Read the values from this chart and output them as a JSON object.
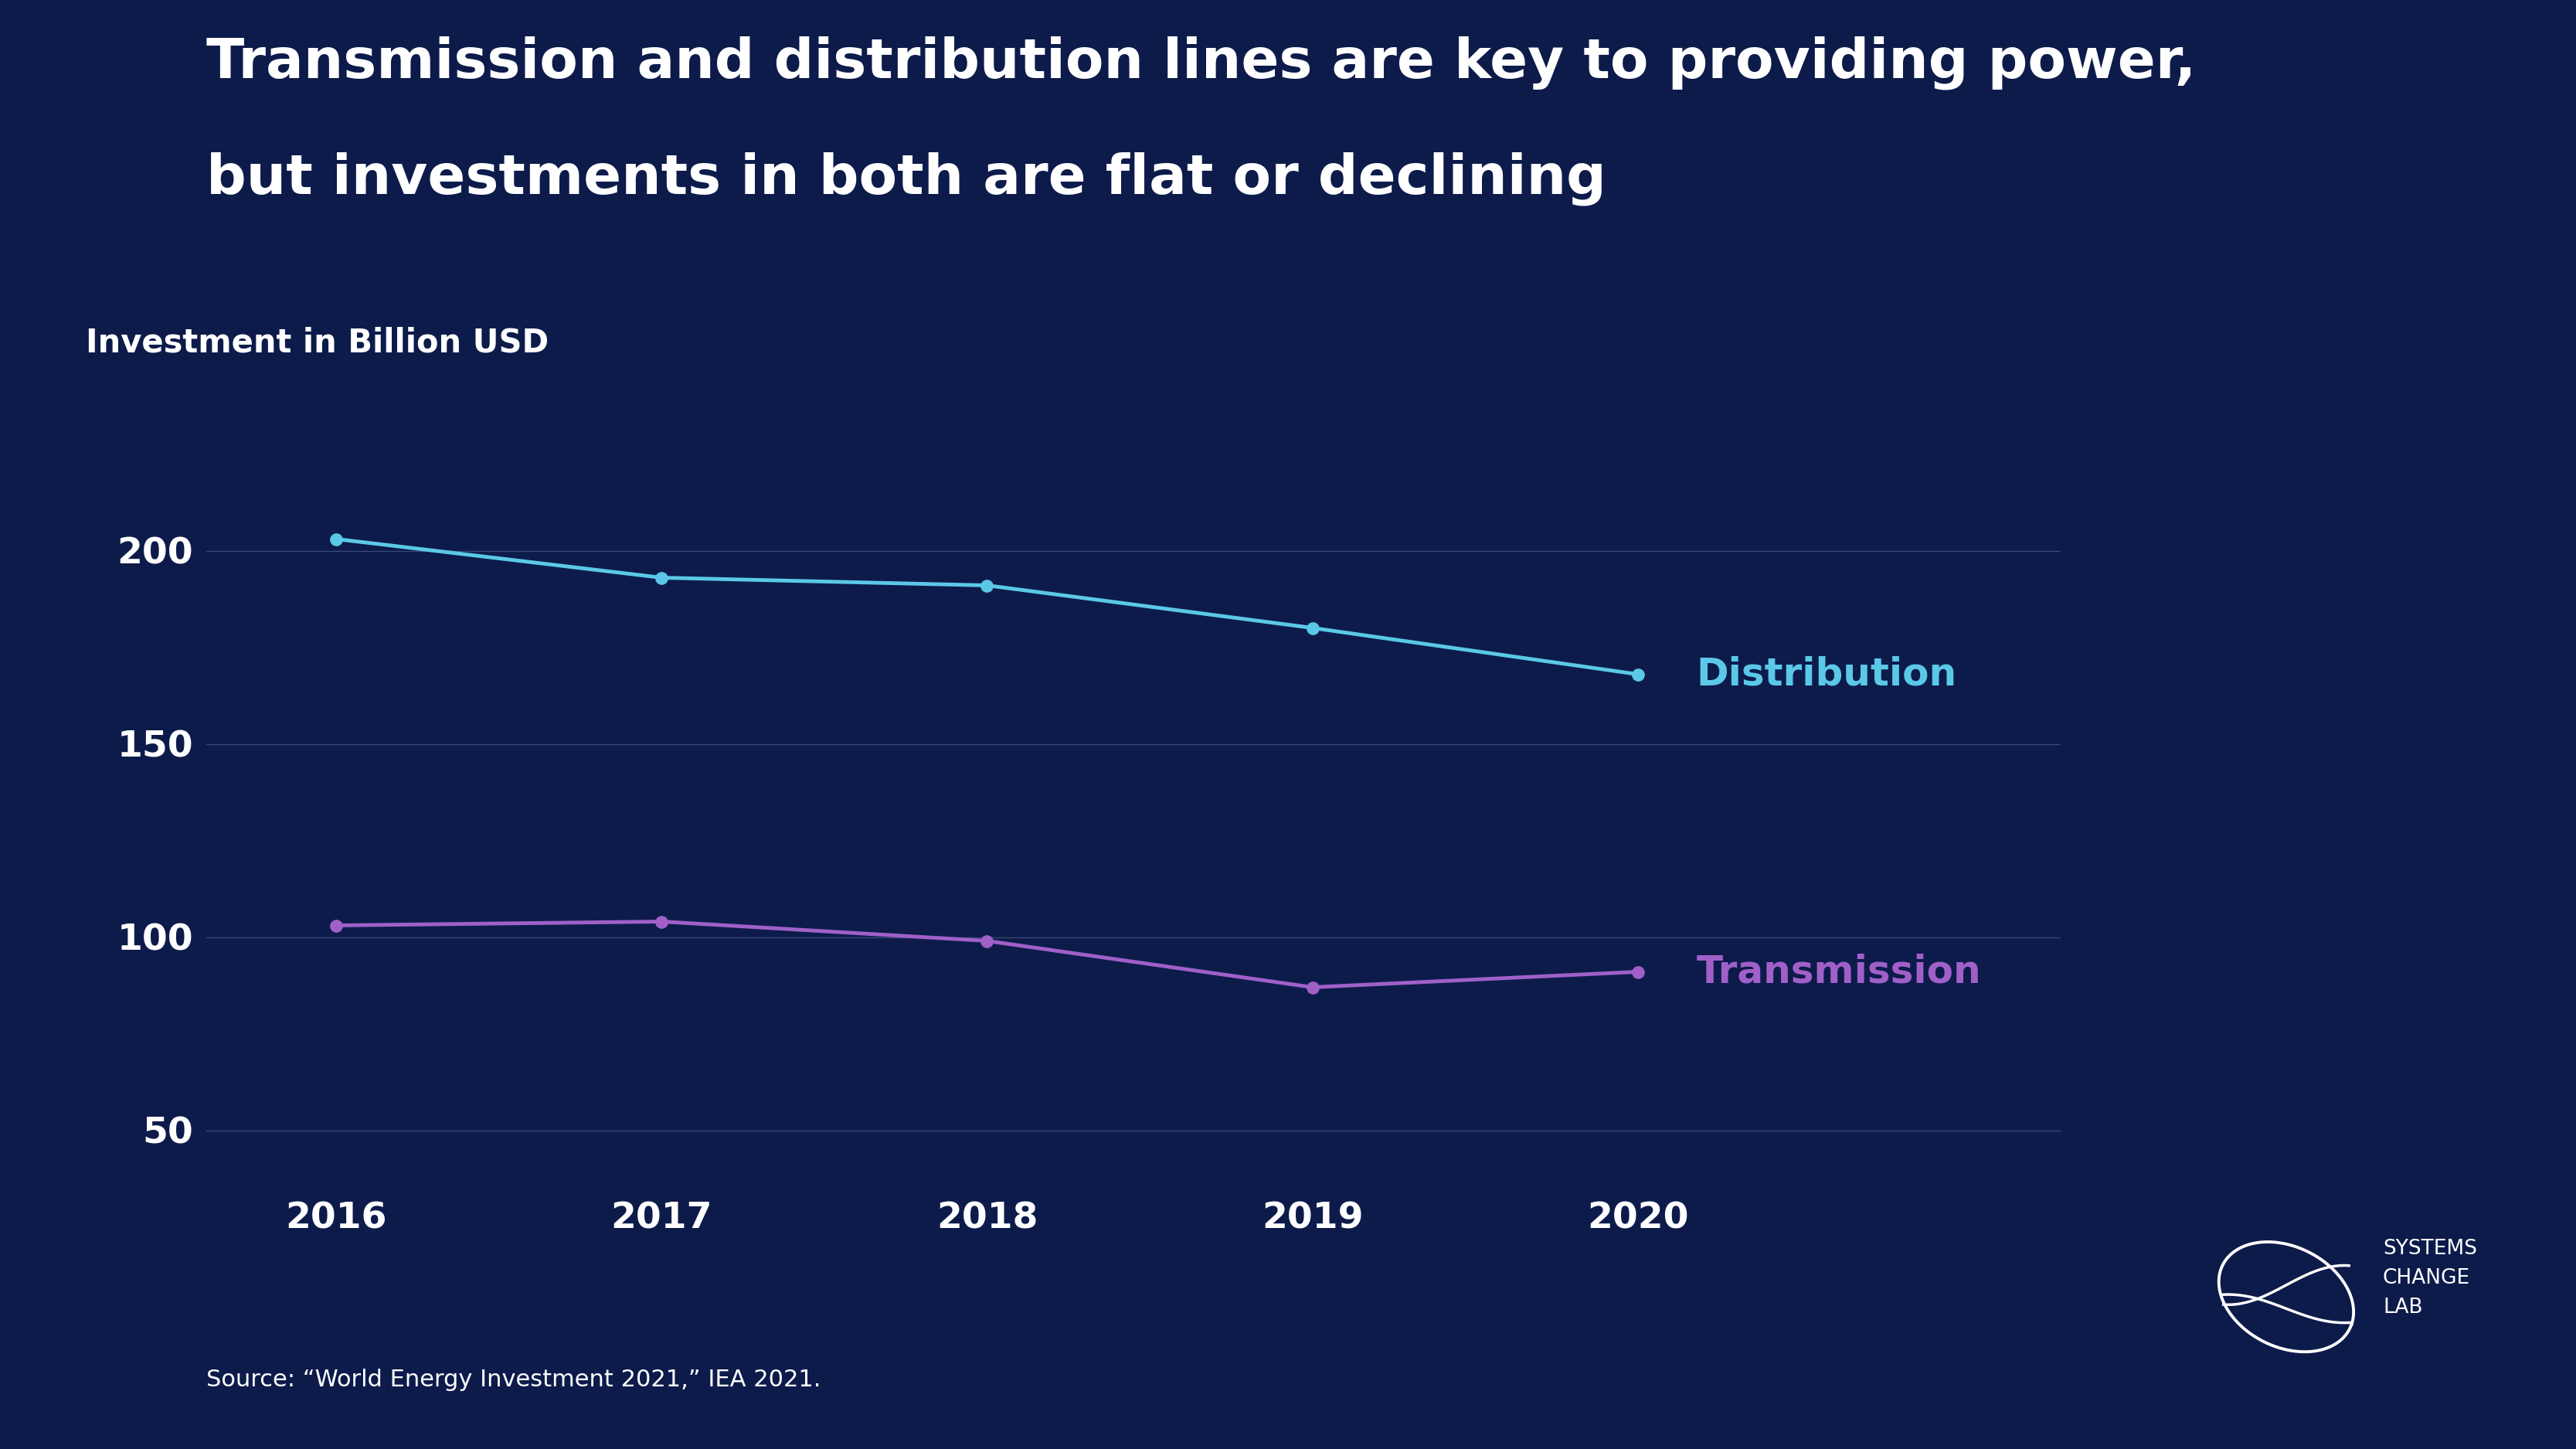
{
  "title_line1": "Transmission and distribution lines are key to providing power,",
  "title_line2": "but investments in both are flat or declining",
  "ylabel": "Investment in Billion USD",
  "source": "Source: “World Energy Investment 2021,” IEA 2021.",
  "background_color": "#0d1b4b",
  "text_color": "#ffffff",
  "grid_color": "#4a5a8a",
  "years": [
    2016,
    2017,
    2018,
    2019,
    2020
  ],
  "distribution": [
    203,
    193,
    191,
    180,
    168
  ],
  "transmission": [
    103,
    104,
    99,
    87,
    91
  ],
  "distribution_color": "#5bc8e8",
  "transmission_color": "#a060c8",
  "distribution_label": "Distribution",
  "transmission_label": "Transmission",
  "yticks": [
    50,
    100,
    150,
    200
  ],
  "ylim": [
    35,
    230
  ],
  "xlim": [
    2015.6,
    2021.3
  ],
  "title_fontsize": 52,
  "label_fontsize": 30,
  "tick_fontsize": 34,
  "source_fontsize": 22,
  "line_label_fontsize": 36,
  "linewidth": 3.5,
  "markersize": 11
}
